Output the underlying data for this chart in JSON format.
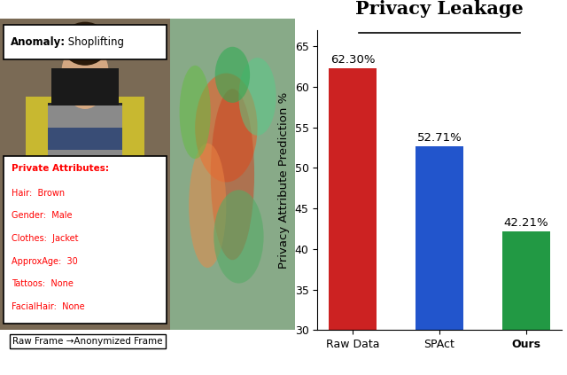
{
  "title": "Privacy Leakage",
  "categories": [
    "Raw Data",
    "SPAct",
    "Ours"
  ],
  "values": [
    62.3,
    52.71,
    42.21
  ],
  "bar_colors": [
    "#cc2222",
    "#2255cc",
    "#229944"
  ],
  "ylabel": "Privacy Attribute Prediction %",
  "ylim": [
    30,
    67
  ],
  "yticks": [
    30,
    35,
    40,
    45,
    50,
    55,
    60,
    65
  ],
  "bar_labels": [
    "62.30%",
    "52.71%",
    "42.21%"
  ],
  "title_fontsize": 15,
  "label_fontsize": 9.5,
  "tick_fontsize": 9,
  "bar_label_fontsize": 9.5,
  "xtick_fontweights": [
    "normal",
    "normal",
    "bold"
  ],
  "left_panel_bg": "#c8b89a",
  "anon_panel_bg": "#a0b8a0",
  "caption_text": "Raw Frame →Anonymized Frame",
  "anomaly_label": "Anomaly:",
  "anomaly_value": " Shoplifting",
  "private_title": "Private Attributes:",
  "private_attrs": [
    "Hair:  Brown",
    "Gender:  Male",
    "Clothes:  Jacket",
    "ApproxAge:  30",
    "Tattoos:  None",
    "FacialHair:  None"
  ]
}
